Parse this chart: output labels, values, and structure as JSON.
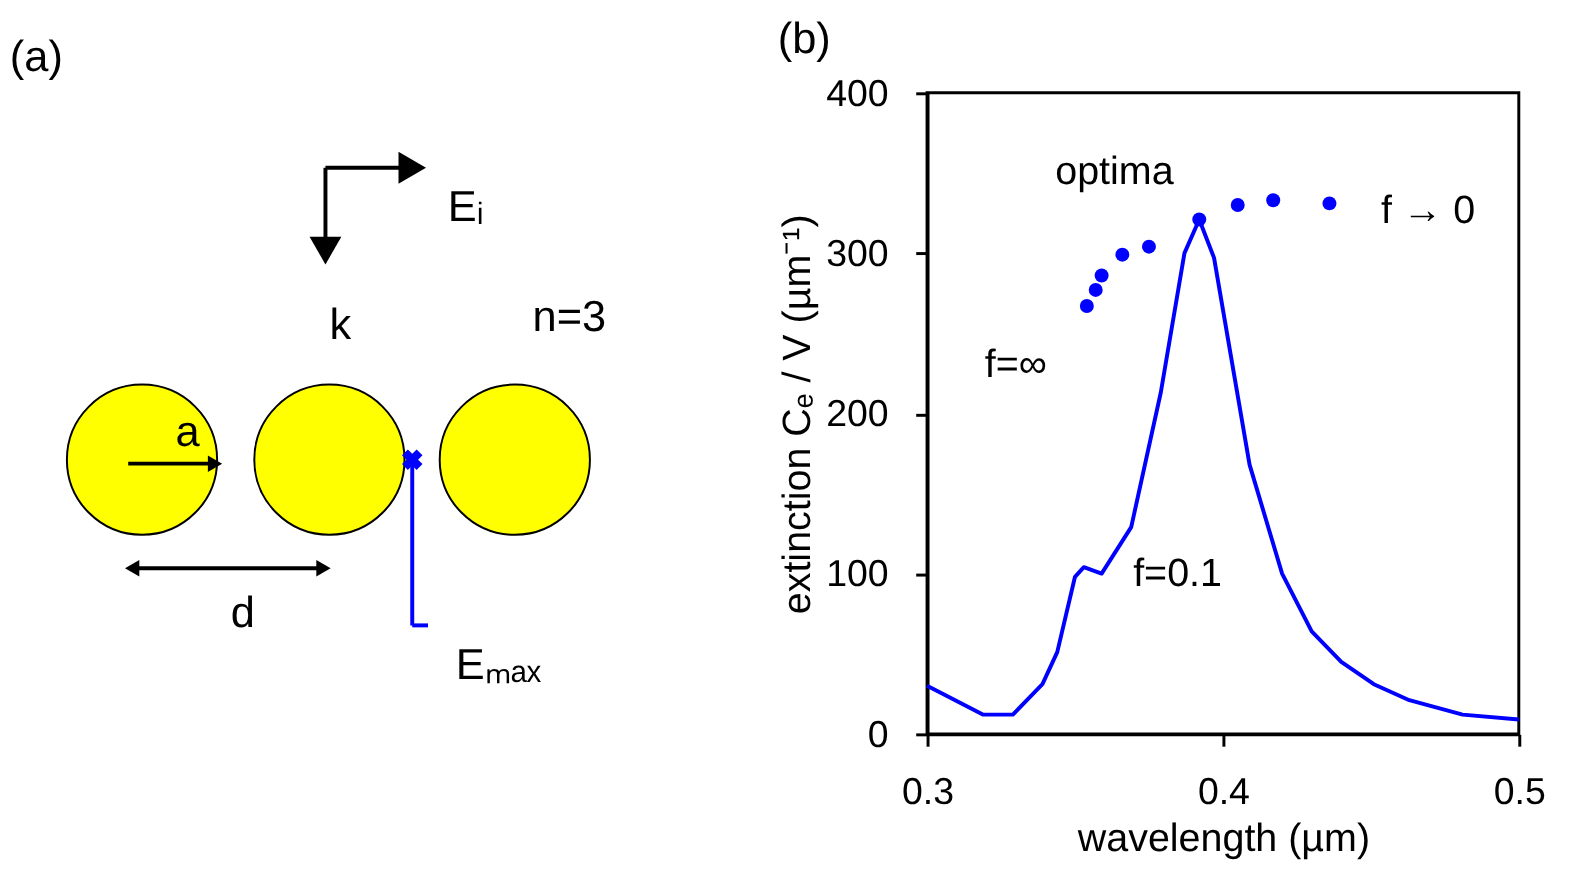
{
  "chart_data": [
    {
      "type": "other",
      "title": "(a)",
      "annotations": [
        "Eᵢ",
        "k",
        "n=3",
        "a",
        "d",
        "Eₘₐₓ"
      ]
    },
    {
      "type": "line",
      "title": "(b)",
      "xlabel": "wavelength (µm)",
      "ylabel": "extinction Cₑ / V (µm⁻¹)",
      "xlim": [
        0.3,
        0.5
      ],
      "xticks": [
        {
          "value": 0.3,
          "label": "0.3"
        },
        {
          "value": 0.4,
          "label": "0.4"
        },
        {
          "value": 0.5,
          "label": "0.5"
        }
      ],
      "ylim": [
        0,
        400
      ],
      "yticks": [
        0,
        100,
        200,
        300,
        400
      ],
      "grid": false,
      "legend": false,
      "series": [
        {
          "type": "line",
          "color": "#0000ff",
          "marker": "none",
          "x": [
            0.3,
            0.319,
            0.329,
            0.339,
            0.344,
            0.35,
            0.353,
            0.359,
            0.369,
            0.379,
            0.387,
            0.392,
            0.397,
            0.409,
            0.42,
            0.43,
            0.44,
            0.451,
            0.463,
            0.481,
            0.5
          ],
          "values": [
            30,
            12,
            12,
            31,
            51,
            98,
            104,
            100,
            129,
            213,
            300,
            321,
            297,
            168,
            100,
            64,
            45,
            31,
            21,
            12,
            9
          ]
        },
        {
          "type": "scatter",
          "color": "#0000ff",
          "marker": "circle",
          "x": [
            0.354,
            0.357,
            0.359,
            0.366,
            0.375,
            0.392,
            0.405,
            0.417,
            0.436
          ],
          "values": [
            267,
            277,
            286,
            299,
            304,
            321,
            330,
            333,
            331
          ]
        }
      ],
      "annotations": [
        "optima",
        "f → 0",
        "f=∞",
        "f=0.1"
      ]
    }
  ]
}
